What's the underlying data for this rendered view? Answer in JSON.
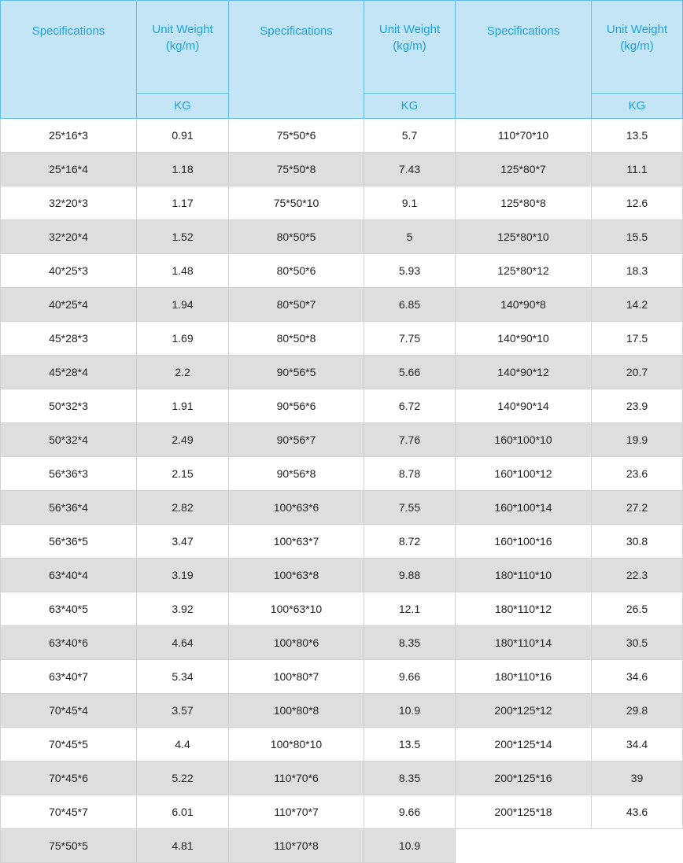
{
  "header": {
    "spec": "Specifications",
    "unit_weight": "Unit Weight (kg/m)",
    "unit": "KG"
  },
  "colors": {
    "header_bg": "#c3e5f5",
    "header_text": "#1fa2e2",
    "header_border": "#63bdea",
    "alt_row": "#dedede"
  },
  "rows": [
    [
      "25*16*3",
      "0.91",
      "75*50*6",
      "5.7",
      "110*70*10",
      "13.5"
    ],
    [
      "25*16*4",
      "1.18",
      "75*50*8",
      "7.43",
      "125*80*7",
      "11.1"
    ],
    [
      "32*20*3",
      "1.17",
      "75*50*10",
      "9.1",
      "125*80*8",
      "12.6"
    ],
    [
      "32*20*4",
      "1.52",
      "80*50*5",
      "5",
      "125*80*10",
      "15.5"
    ],
    [
      "40*25*3",
      "1.48",
      "80*50*6",
      "5.93",
      "125*80*12",
      "18.3"
    ],
    [
      "40*25*4",
      "1.94",
      "80*50*7",
      "6.85",
      "140*90*8",
      "14.2"
    ],
    [
      "45*28*3",
      "1.69",
      "80*50*8",
      "7.75",
      "140*90*10",
      "17.5"
    ],
    [
      "45*28*4",
      "2.2",
      "90*56*5",
      "5.66",
      "140*90*12",
      "20.7"
    ],
    [
      "50*32*3",
      "1.91",
      "90*56*6",
      "6.72",
      "140*90*14",
      "23.9"
    ],
    [
      "50*32*4",
      "2.49",
      "90*56*7",
      "7.76",
      "160*100*10",
      "19.9"
    ],
    [
      "56*36*3",
      "2.15",
      "90*56*8",
      "8.78",
      "160*100*12",
      "23.6"
    ],
    [
      "56*36*4",
      "2.82",
      "100*63*6",
      "7.55",
      "160*100*14",
      "27.2"
    ],
    [
      "56*36*5",
      "3.47",
      "100*63*7",
      "8.72",
      "160*100*16",
      "30.8"
    ],
    [
      "63*40*4",
      "3.19",
      "100*63*8",
      "9.88",
      "180*110*10",
      "22.3"
    ],
    [
      "63*40*5",
      "3.92",
      "100*63*10",
      "12.1",
      "180*110*12",
      "26.5"
    ],
    [
      "63*40*6",
      "4.64",
      "100*80*6",
      "8.35",
      "180*110*14",
      "30.5"
    ],
    [
      "63*40*7",
      "5.34",
      "100*80*7",
      "9.66",
      "180*110*16",
      "34.6"
    ],
    [
      "70*45*4",
      "3.57",
      "100*80*8",
      "10.9",
      "200*125*12",
      "29.8"
    ],
    [
      "70*45*5",
      "4.4",
      "100*80*10",
      "13.5",
      "200*125*14",
      "34.4"
    ],
    [
      "70*45*6",
      "5.22",
      "110*70*6",
      "8.35",
      "200*125*16",
      "39"
    ],
    [
      "70*45*7",
      "6.01",
      "110*70*7",
      "9.66",
      "200*125*18",
      "43.6"
    ],
    [
      "75*50*5",
      "4.81",
      "110*70*8",
      "10.9",
      "",
      ""
    ]
  ]
}
